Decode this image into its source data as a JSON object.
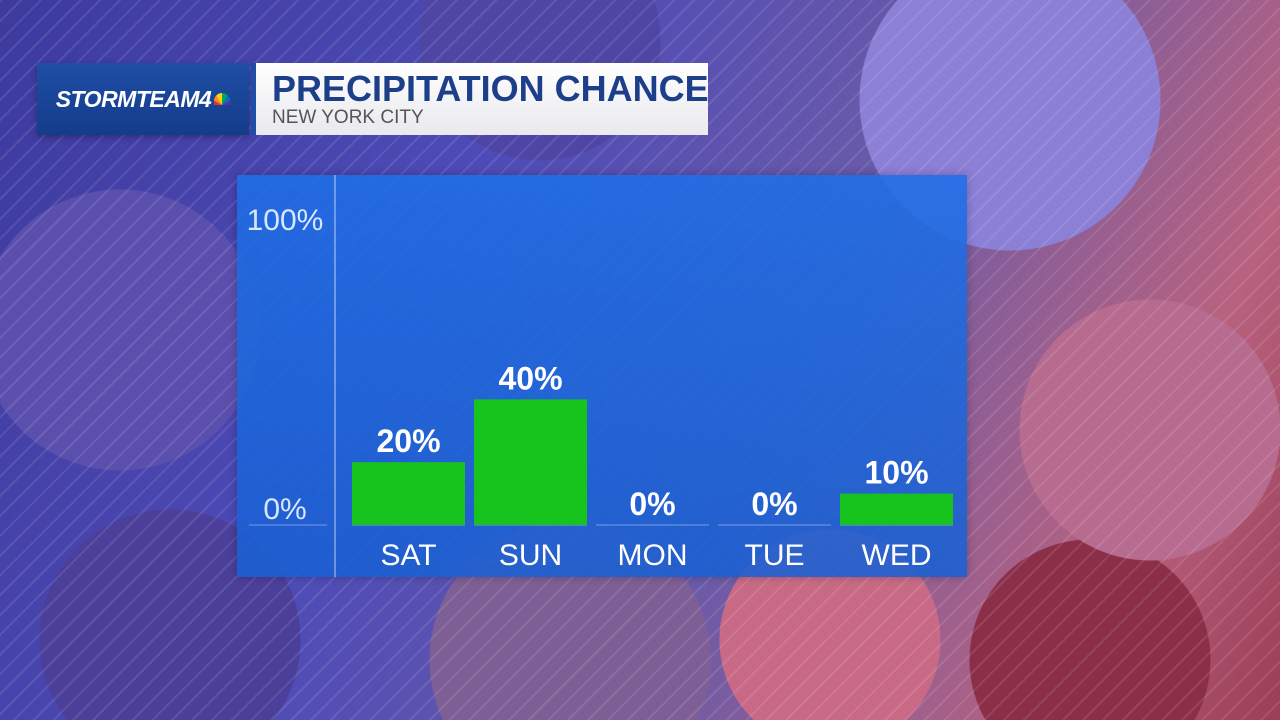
{
  "header": {
    "brand": "STORMTEAM4",
    "title": "PRECIPITATION CHANCE",
    "subtitle": "NEW YORK CITY"
  },
  "colors": {
    "bar": "#16c41d",
    "panel": "#1e6ee6",
    "title": "#1d3f8a",
    "brand_box": "#1e4ea6"
  },
  "chart_data": {
    "type": "bar",
    "title": "PRECIPITATION CHANCE",
    "subtitle": "NEW YORK CITY",
    "categories": [
      "SAT",
      "SUN",
      "MON",
      "TUE",
      "WED"
    ],
    "values": [
      20,
      40,
      0,
      0,
      10
    ],
    "value_labels": [
      "20%",
      "40%",
      "0%",
      "0%",
      "10%"
    ],
    "ylim": [
      0,
      100
    ],
    "yticks": [
      "0%",
      "100%"
    ],
    "grid": false,
    "legend": "none"
  }
}
